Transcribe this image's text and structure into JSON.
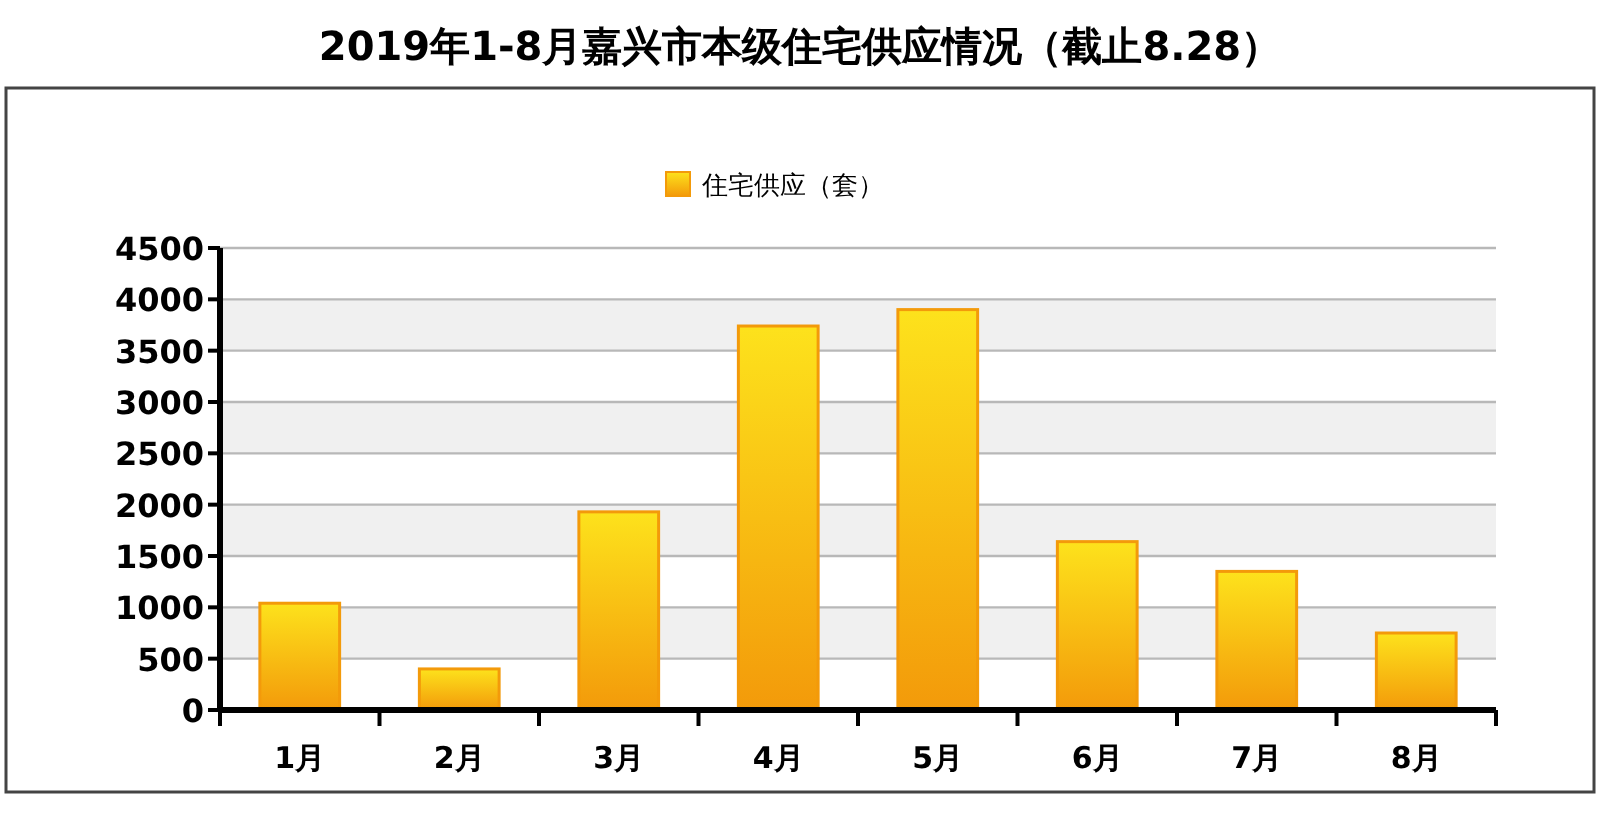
{
  "chart_data": {
    "type": "bar",
    "title": "2019年1-8月嘉兴市本级住宅供应情况（截止8.28）",
    "categories": [
      "1月",
      "2月",
      "3月",
      "4月",
      "5月",
      "6月",
      "7月",
      "8月"
    ],
    "series": [
      {
        "name": "住宅供应（套）",
        "color": "#f39a0a",
        "values": [
          1040,
          400,
          1930,
          3740,
          3900,
          1640,
          1350,
          750
        ]
      }
    ],
    "ylim": [
      0,
      4500
    ],
    "yticks": [
      0,
      500,
      1000,
      1500,
      2000,
      2500,
      3000,
      3500,
      4000,
      4500
    ],
    "grid": "y",
    "legend": "top"
  }
}
